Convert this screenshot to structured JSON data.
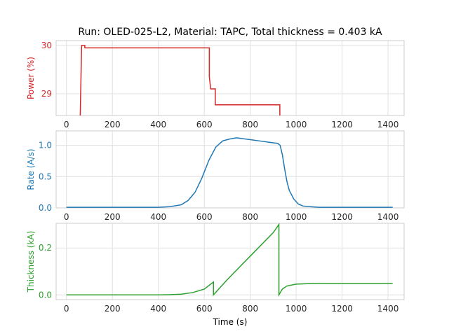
{
  "chart_data": {
    "title": "Run: OLED-025-L2, Material: TAPC, Total thickness = 0.403 kA",
    "xlabel": "Time (s)",
    "shared_x_ticks": [
      "0",
      "200",
      "400",
      "600",
      "800",
      "1000",
      "1200",
      "1400"
    ],
    "panels": [
      {
        "id": "power",
        "type": "line",
        "ylabel": "Power (%)",
        "color": "#d62728",
        "xlim": [
          -45,
          1470
        ],
        "ylim": [
          28.55,
          30.1
        ],
        "yticks": [
          29,
          30
        ],
        "grid": true,
        "series": [
          {
            "x": [
              0,
              60,
              60,
              66,
              66,
              80,
              80,
              622,
              622,
              628,
              632,
              648,
              648,
              929,
              929
            ],
            "y": [
              28.5,
              28.5,
              28.55,
              30.0,
              30.0,
              30.0,
              29.95,
              29.95,
              29.35,
              29.1,
              29.1,
              29.1,
              28.77,
              28.77,
              28.5
            ]
          }
        ]
      },
      {
        "id": "rate",
        "type": "line",
        "ylabel": "Rate (A/s)",
        "color": "#1f77b4",
        "xlim": [
          -45,
          1470
        ],
        "ylim": [
          0,
          1.23
        ],
        "yticks": [
          0.0,
          0.5,
          1.0
        ],
        "grid": true,
        "series": [
          {
            "x": [
              0,
              100,
              200,
              300,
              400,
              450,
              500,
              530,
              560,
              590,
              620,
              650,
              680,
              710,
              740,
              760,
              800,
              840,
              880,
              920,
              930,
              940,
              950,
              960,
              970,
              990,
              1010,
              1030,
              1060,
              1100,
              1200,
              1300,
              1420
            ],
            "y": [
              0.01,
              0.01,
              0.01,
              0.01,
              0.01,
              0.02,
              0.05,
              0.12,
              0.25,
              0.48,
              0.76,
              0.97,
              1.07,
              1.1,
              1.12,
              1.11,
              1.09,
              1.07,
              1.05,
              1.03,
              1.0,
              0.85,
              0.62,
              0.42,
              0.28,
              0.14,
              0.06,
              0.03,
              0.02,
              0.01,
              0.01,
              0.01,
              0.01
            ]
          }
        ]
      },
      {
        "id": "thickness",
        "type": "line",
        "ylabel": "Thickness (kA)",
        "color": "#2ca02c",
        "xlim": [
          -45,
          1470
        ],
        "ylim": [
          -0.02,
          0.305
        ],
        "yticks": [
          0.0,
          0.2
        ],
        "grid": true,
        "series": [
          {
            "x": [
              0,
              400,
              450,
              500,
              550,
              600,
              640,
              640,
              650,
              700,
              800,
              900,
              925,
              925,
              940,
              960,
              1000,
              1050,
              1100,
              1200,
              1420
            ],
            "y": [
              0.0,
              0.0,
              0.001,
              0.003,
              0.01,
              0.025,
              0.055,
              0.0,
              0.011,
              0.065,
              0.165,
              0.265,
              0.3,
              0.0,
              0.025,
              0.038,
              0.046,
              0.048,
              0.049,
              0.049,
              0.049
            ]
          }
        ]
      }
    ]
  }
}
